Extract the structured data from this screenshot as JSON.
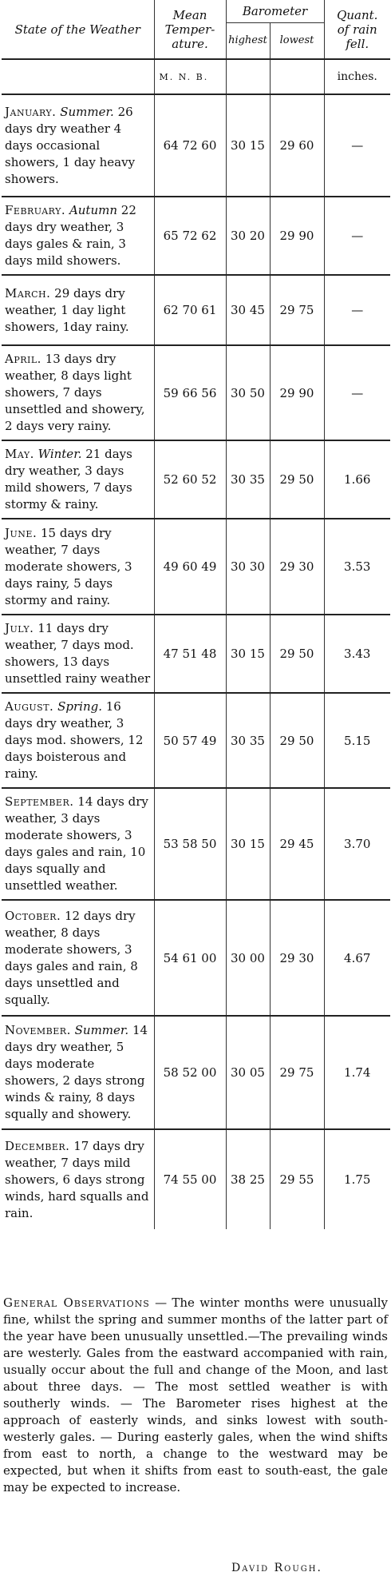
{
  "header": {
    "state_label": "State of the Weather",
    "mean_label": "Mean",
    "temp_label": "Temper-",
    "ature_label": "ature.",
    "baro_label": "Barometer",
    "highest_label": "highest",
    "lowest_label": "lowest",
    "quant_label": "Quant.",
    "ofrain_label": "of rain",
    "fell_label": "fell.",
    "mnb_label": "M. N. B.",
    "inches_label": "inches."
  },
  "months": [
    {
      "name": "January.",
      "season": "Summer.",
      "text": "26 days dry weather 4 days occasional showers, 1 day heavy showers.",
      "temp": "64 72 60",
      "high": "30 15",
      "low": "29 60",
      "rain": "—"
    },
    {
      "name": "February.",
      "season": "Autumn",
      "text": "22 days dry weather, 3 days gales & rain, 3 days mild showers.",
      "temp": "65 72 62",
      "high": "30 20",
      "low": "29 90",
      "rain": "—"
    },
    {
      "name": "March.",
      "season": "",
      "text": "29 days dry weather, 1 day light showers, 1day rainy.",
      "temp": "62 70 61",
      "high": "30 45",
      "low": "29 75",
      "rain": "—"
    },
    {
      "name": "April.",
      "season": "",
      "text": "13 days dry weather, 8 days light showers, 7 days unsettled and showery, 2 days very rainy.",
      "temp": "59 66 56",
      "high": "30 50",
      "low": "29 90",
      "rain": "—"
    },
    {
      "name": "May.",
      "season": "Winter.",
      "text": "21 days dry weather, 3 days mild showers, 7 days stormy & rainy.",
      "temp": "52 60 52",
      "high": "30 35",
      "low": "29 50",
      "rain": "1.66"
    },
    {
      "name": "June.",
      "season": "",
      "text": "15 days dry weather, 7 days moderate showers, 3 days rainy, 5 days stormy and rainy.",
      "temp": "49 60 49",
      "high": "30 30",
      "low": "29 30",
      "rain": "3.53"
    },
    {
      "name": "July.",
      "season": "",
      "text": "11 days dry weather, 7 days mod. showers, 13 days unsettled rainy weather",
      "temp": "47 51 48",
      "high": "30 15",
      "low": "29 50",
      "rain": "3.43"
    },
    {
      "name": "August.",
      "season": "Spring.",
      "text": "16 days dry weather, 3 days mod. showers, 12 days boisterous and rainy.",
      "temp": "50 57 49",
      "high": "30 35",
      "low": "29 50",
      "rain": "5.15"
    },
    {
      "name": "September.",
      "season": "",
      "text": "14 days dry weather, 3 days moderate showers, 3 days gales and rain, 10 days squally and unsettled weather.",
      "temp": "53 58 50",
      "high": "30 15",
      "low": "29 45",
      "rain": "3.70"
    },
    {
      "name": "October.",
      "season": "",
      "text": "12 days dry weather, 8 days moderate showers, 3 days gales and rain, 8 days unsettled and squally.",
      "temp": "54 61 00",
      "high": "30 00",
      "low": "29 30",
      "rain": "4.67"
    },
    {
      "name": "November.",
      "season": "Summer.",
      "text": "14 days dry weather, 5 days moderate showers, 2 days strong winds & rainy, 8 days squally and showery.",
      "temp": "58 52 00",
      "high": "30 05",
      "low": "29 75",
      "rain": "1.74"
    },
    {
      "name": "December.",
      "season": "",
      "text": "17 days dry weather, 7 days mild showers, 6 days strong winds, hard squalls and rain.",
      "temp": "74 55 00",
      "high": "38 25",
      "low": "29 55",
      "rain": "1.75"
    }
  ],
  "observations": {
    "heading": "General Observations",
    "text": "— The winter months were unusually fine, whilst the spring and summer months of the latter part of the year have been unusually unsettled.—The prevailing winds are westerly. Gales from the eastward accompanied with rain, usually occur about the full and change of the Moon, and last about three days. — The most settled weather is with southerly winds. — The Barometer rises highest at the approach of easterly winds, and sinks lowest with south-westerly gales. — During easterly gales, when the wind shifts from east to north, a change to the westward may be expected, but when it shifts from east to south-east, the gale may be expected to increase."
  },
  "signature": "David Rough."
}
